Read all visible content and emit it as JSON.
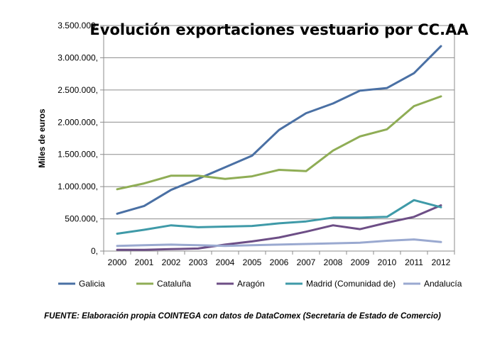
{
  "chart_data": {
    "type": "line",
    "title": "Evolución exportaciones vestuario por CC.AA",
    "ylabel": "Miles de euros",
    "xlabel": "",
    "categories": [
      "2000",
      "2001",
      "2002",
      "2003",
      "2004",
      "2005",
      "2006",
      "2007",
      "2008",
      "2009",
      "2010",
      "2011",
      "2012"
    ],
    "ylim": [
      0,
      3500000
    ],
    "yticks": [
      0,
      500000,
      1000000,
      1500000,
      2000000,
      2500000,
      3000000,
      3500000
    ],
    "ytick_labels": [
      "0,",
      "500.000,",
      "1.000.000,",
      "1.500.000,",
      "2.000.000,",
      "2.500.000,",
      "3.000.000,",
      "3.500.000,"
    ],
    "grid": "horizontal",
    "legend_position": "bottom",
    "series": [
      {
        "name": "Galicia",
        "color": "#4A70A4",
        "values": [
          580000,
          700000,
          950000,
          1120000,
          1300000,
          1480000,
          1880000,
          2140000,
          2290000,
          2490000,
          2530000,
          2760000,
          3180000
        ]
      },
      {
        "name": "Cataluña",
        "color": "#8FAD55",
        "values": [
          960000,
          1050000,
          1170000,
          1170000,
          1120000,
          1160000,
          1260000,
          1240000,
          1560000,
          1780000,
          1890000,
          2250000,
          2400000
        ]
      },
      {
        "name": "Aragón",
        "color": "#6D4E86",
        "values": [
          20000,
          20000,
          30000,
          40000,
          100000,
          150000,
          210000,
          300000,
          400000,
          340000,
          440000,
          530000,
          710000
        ]
      },
      {
        "name": "Madrid (Comunidad de)",
        "color": "#3F9AA8",
        "values": [
          270000,
          330000,
          400000,
          370000,
          380000,
          390000,
          430000,
          460000,
          520000,
          520000,
          530000,
          790000,
          680000
        ]
      },
      {
        "name": "Andalucía",
        "color": "#9AA9D0",
        "values": [
          80000,
          90000,
          100000,
          90000,
          80000,
          90000,
          100000,
          110000,
          120000,
          130000,
          160000,
          180000,
          140000
        ]
      }
    ]
  },
  "footer": {
    "source": "FUENTE: Elaboración propia COINTEGA con datos de DataComex (Secretaria de Estado de Comercio)"
  }
}
